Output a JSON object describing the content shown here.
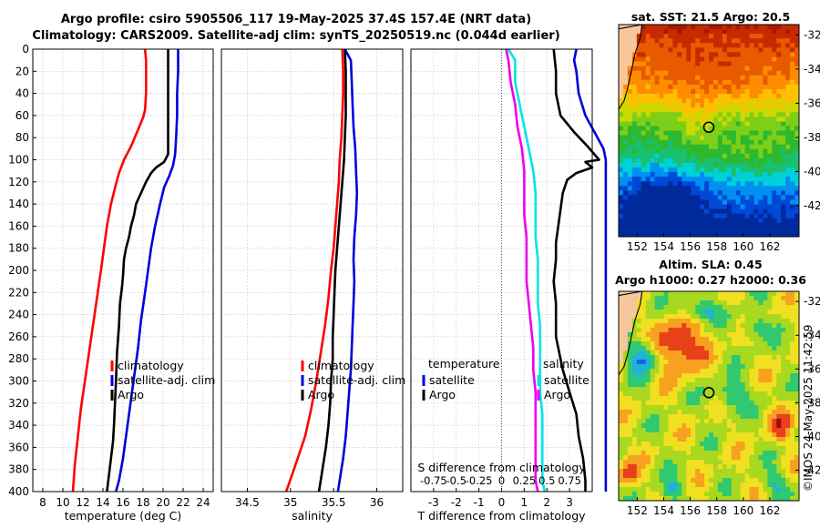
{
  "header": {
    "title_line1": "Argo profile: csiro 5905506_117 19-May-2025 37.4S 157.4E (NRT data)",
    "title_line2": "Climatology: CARS2009. Satellite-adj clim: synTS_20250519.nc (0.044d earlier)"
  },
  "copyright": "©IMOS 24-May-2025 11:42:59",
  "colors": {
    "climatology": "#ff0000",
    "satellite": "#0000dd",
    "argo": "#000000",
    "sal_satellite": "#00e5e5",
    "sal_climatology": "#ee00ee"
  },
  "chart_data": [
    {
      "type": "line",
      "id": "temperature",
      "xlabel": "temperature (deg C)",
      "ylabel": "",
      "xlim": [
        7,
        25
      ],
      "ylim": [
        400,
        0
      ],
      "xticks": [
        "8",
        "10",
        "12",
        "14",
        "16",
        "18",
        "20",
        "22",
        "24"
      ],
      "yticks": [
        "0",
        "20",
        "40",
        "60",
        "80",
        "100",
        "120",
        "140",
        "160",
        "180",
        "200",
        "220",
        "240",
        "260",
        "280",
        "300",
        "320",
        "340",
        "360",
        "380",
        "400"
      ],
      "legend": [
        "climatology",
        "satellite-adj. clim",
        "Argo"
      ],
      "series": [
        {
          "name": "climatology",
          "color": "#ff0000",
          "points": [
            [
              18.2,
              0
            ],
            [
              18.3,
              10
            ],
            [
              18.3,
              25
            ],
            [
              18.3,
              40
            ],
            [
              18.2,
              55
            ],
            [
              18.0,
              62
            ],
            [
              17.4,
              75
            ],
            [
              16.8,
              88
            ],
            [
              16.1,
              100
            ],
            [
              15.6,
              112
            ],
            [
              15.3,
              122
            ],
            [
              14.8,
              140
            ],
            [
              14.4,
              160
            ],
            [
              14.1,
              180
            ],
            [
              13.8,
              200
            ],
            [
              13.4,
              225
            ],
            [
              13.0,
              250
            ],
            [
              12.6,
              275
            ],
            [
              12.2,
              300
            ],
            [
              11.8,
              325
            ],
            [
              11.5,
              350
            ],
            [
              11.2,
              375
            ],
            [
              11.0,
              400
            ]
          ]
        },
        {
          "name": "satellite-adj. clim",
          "color": "#0000dd",
          "points": [
            [
              21.5,
              0
            ],
            [
              21.5,
              20
            ],
            [
              21.4,
              40
            ],
            [
              21.4,
              60
            ],
            [
              21.3,
              80
            ],
            [
              21.2,
              95
            ],
            [
              21.0,
              105
            ],
            [
              20.6,
              115
            ],
            [
              20.1,
              125
            ],
            [
              19.7,
              140
            ],
            [
              19.2,
              160
            ],
            [
              18.8,
              180
            ],
            [
              18.5,
              200
            ],
            [
              18.2,
              220
            ],
            [
              17.8,
              245
            ],
            [
              17.5,
              270
            ],
            [
              17.2,
              290
            ],
            [
              16.9,
              310
            ],
            [
              16.6,
              330
            ],
            [
              16.3,
              350
            ],
            [
              16.0,
              370
            ],
            [
              15.6,
              390
            ],
            [
              15.3,
              400
            ]
          ]
        },
        {
          "name": "Argo",
          "color": "#000000",
          "points": [
            [
              20.5,
              0
            ],
            [
              20.5,
              20
            ],
            [
              20.5,
              40
            ],
            [
              20.5,
              60
            ],
            [
              20.5,
              80
            ],
            [
              20.5,
              95
            ],
            [
              20.1,
              102
            ],
            [
              19.3,
              107
            ],
            [
              18.8,
              112
            ],
            [
              18.3,
              120
            ],
            [
              17.8,
              130
            ],
            [
              17.3,
              140
            ],
            [
              17.1,
              150
            ],
            [
              16.8,
              160
            ],
            [
              16.6,
              170
            ],
            [
              16.3,
              180
            ],
            [
              16.1,
              190
            ],
            [
              16.0,
              205
            ],
            [
              15.9,
              215
            ],
            [
              15.7,
              230
            ],
            [
              15.6,
              250
            ],
            [
              15.4,
              275
            ],
            [
              15.3,
              300
            ],
            [
              15.2,
              320
            ],
            [
              15.1,
              340
            ],
            [
              15.0,
              355
            ],
            [
              14.8,
              370
            ],
            [
              14.6,
              385
            ],
            [
              14.4,
              400
            ]
          ]
        }
      ]
    },
    {
      "type": "line",
      "id": "salinity",
      "xlabel": "salinity",
      "ylabel": "",
      "xlim": [
        34.2,
        36.3
      ],
      "ylim": [
        400,
        0
      ],
      "xticks": [
        "34.5",
        "35",
        "35.5",
        "36"
      ],
      "legend": [
        "climatology",
        "satellite-adj. clim",
        "Argo"
      ],
      "series": [
        {
          "name": "climatology",
          "color": "#ff0000",
          "points": [
            [
              35.6,
              0
            ],
            [
              35.61,
              20
            ],
            [
              35.61,
              40
            ],
            [
              35.6,
              60
            ],
            [
              35.59,
              80
            ],
            [
              35.57,
              100
            ],
            [
              35.56,
              120
            ],
            [
              35.54,
              140
            ],
            [
              35.52,
              160
            ],
            [
              35.5,
              180
            ],
            [
              35.47,
              200
            ],
            [
              35.44,
              225
            ],
            [
              35.4,
              250
            ],
            [
              35.35,
              275
            ],
            [
              35.3,
              300
            ],
            [
              35.24,
              325
            ],
            [
              35.17,
              350
            ],
            [
              35.04,
              380
            ],
            [
              34.95,
              400
            ]
          ]
        },
        {
          "name": "satellite-adj. clim",
          "color": "#0000dd",
          "points": [
            [
              35.63,
              0
            ],
            [
              35.7,
              10
            ],
            [
              35.71,
              30
            ],
            [
              35.72,
              50
            ],
            [
              35.73,
              70
            ],
            [
              35.75,
              90
            ],
            [
              35.76,
              110
            ],
            [
              35.77,
              130
            ],
            [
              35.76,
              150
            ],
            [
              35.74,
              170
            ],
            [
              35.73,
              190
            ],
            [
              35.74,
              210
            ],
            [
              35.73,
              230
            ],
            [
              35.72,
              250
            ],
            [
              35.71,
              270
            ],
            [
              35.7,
              290
            ],
            [
              35.68,
              310
            ],
            [
              35.66,
              330
            ],
            [
              35.64,
              350
            ],
            [
              35.61,
              370
            ],
            [
              35.57,
              390
            ],
            [
              35.55,
              400
            ]
          ]
        },
        {
          "name": "Argo",
          "color": "#000000",
          "points": [
            [
              35.63,
              0
            ],
            [
              35.64,
              20
            ],
            [
              35.64,
              40
            ],
            [
              35.64,
              60
            ],
            [
              35.63,
              80
            ],
            [
              35.62,
              100
            ],
            [
              35.6,
              120
            ],
            [
              35.58,
              140
            ],
            [
              35.56,
              160
            ],
            [
              35.54,
              180
            ],
            [
              35.52,
              200
            ],
            [
              35.51,
              220
            ],
            [
              35.5,
              240
            ],
            [
              35.49,
              260
            ],
            [
              35.49,
              280
            ],
            [
              35.47,
              300
            ],
            [
              35.46,
              320
            ],
            [
              35.44,
              340
            ],
            [
              35.41,
              360
            ],
            [
              35.37,
              380
            ],
            [
              35.33,
              400
            ]
          ]
        }
      ]
    },
    {
      "type": "line",
      "id": "difference",
      "xlabel": "T difference from climatology",
      "xlabel_top": "S difference from climatology",
      "xlim": [
        -4,
        4
      ],
      "ylim": [
        400,
        0
      ],
      "xticks": [
        "-3",
        "-2",
        "-1",
        "0",
        "1",
        "2",
        "3"
      ],
      "xticks_top": [
        "-0.75",
        "-0.5",
        "-0.25",
        "0",
        "0.25",
        "0.5",
        "0.75"
      ],
      "legend_temperature": {
        "title": "temperature",
        "entries": [
          "satellite",
          "Argo"
        ]
      },
      "legend_salinity": {
        "title": "salinity",
        "entries": [
          "satellite",
          "Argo"
        ]
      },
      "series": [
        {
          "name": "T satellite",
          "color": "#0000dd",
          "points": [
            [
              3.3,
              0
            ],
            [
              3.2,
              10
            ],
            [
              3.3,
              20
            ],
            [
              3.4,
              40
            ],
            [
              3.7,
              60
            ],
            [
              4.1,
              75
            ],
            [
              4.5,
              90
            ],
            [
              4.6,
              100
            ],
            [
              4.6,
              120
            ],
            [
              4.6,
              140
            ],
            [
              4.6,
              160
            ],
            [
              4.6,
              200
            ],
            [
              4.6,
              260
            ],
            [
              4.6,
              300
            ],
            [
              4.6,
              360
            ],
            [
              4.6,
              400
            ]
          ]
        },
        {
          "name": "T Argo",
          "color": "#000000",
          "points": [
            [
              2.3,
              0
            ],
            [
              2.4,
              20
            ],
            [
              2.4,
              40
            ],
            [
              2.6,
              60
            ],
            [
              3.2,
              75
            ],
            [
              3.8,
              88
            ],
            [
              4.3,
              100
            ],
            [
              3.7,
              102
            ],
            [
              4.0,
              107
            ],
            [
              3.3,
              112
            ],
            [
              2.9,
              118
            ],
            [
              2.7,
              130
            ],
            [
              2.6,
              145
            ],
            [
              2.5,
              160
            ],
            [
              2.4,
              175
            ],
            [
              2.4,
              190
            ],
            [
              2.3,
              210
            ],
            [
              2.4,
              230
            ],
            [
              2.4,
              260
            ],
            [
              2.7,
              290
            ],
            [
              3.0,
              310
            ],
            [
              3.3,
              330
            ],
            [
              3.4,
              350
            ],
            [
              3.6,
              370
            ],
            [
              3.7,
              390
            ],
            [
              3.7,
              400
            ]
          ]
        },
        {
          "name": "S satellite",
          "color": "#00e5e5",
          "points": [
            [
              0.3,
              0
            ],
            [
              0.6,
              10
            ],
            [
              0.6,
              30
            ],
            [
              0.8,
              50
            ],
            [
              1.0,
              70
            ],
            [
              1.2,
              90
            ],
            [
              1.4,
              110
            ],
            [
              1.5,
              130
            ],
            [
              1.5,
              150
            ],
            [
              1.5,
              170
            ],
            [
              1.6,
              190
            ],
            [
              1.6,
              210
            ],
            [
              1.6,
              230
            ],
            [
              1.7,
              250
            ],
            [
              1.7,
              270
            ],
            [
              1.7,
              290
            ],
            [
              1.7,
              310
            ],
            [
              1.8,
              330
            ],
            [
              1.8,
              350
            ],
            [
              1.8,
              370
            ],
            [
              1.8,
              390
            ],
            [
              1.9,
              400
            ]
          ]
        },
        {
          "name": "S Argo",
          "color": "#ee00ee",
          "points": [
            [
              0.2,
              0
            ],
            [
              0.3,
              10
            ],
            [
              0.4,
              30
            ],
            [
              0.6,
              50
            ],
            [
              0.7,
              70
            ],
            [
              0.9,
              90
            ],
            [
              1.0,
              110
            ],
            [
              1.0,
              130
            ],
            [
              1.0,
              150
            ],
            [
              1.1,
              170
            ],
            [
              1.1,
              190
            ],
            [
              1.1,
              210
            ],
            [
              1.2,
              230
            ],
            [
              1.3,
              250
            ],
            [
              1.4,
              270
            ],
            [
              1.4,
              290
            ],
            [
              1.5,
              310
            ],
            [
              1.5,
              330
            ],
            [
              1.5,
              350
            ],
            [
              1.5,
              370
            ],
            [
              1.5,
              390
            ],
            [
              1.6,
              400
            ]
          ]
        }
      ]
    },
    {
      "type": "heatmap",
      "id": "sst_map",
      "title": "sat. SST: 21.5 Argo: 20.5",
      "xlim": [
        150.6,
        164.2
      ],
      "ylim": [
        -43.8,
        -31.4
      ],
      "xticks": [
        "152",
        "154",
        "156",
        "158",
        "160",
        "162"
      ],
      "yticks": [
        "-32",
        "-34",
        "-36",
        "-38",
        "-40",
        "-42"
      ],
      "marker": {
        "lon": 157.4,
        "lat": -37.4
      }
    },
    {
      "type": "heatmap",
      "id": "sla_map",
      "title_line1": "Altim. SLA: 0.45",
      "title_line2": "Argo h1000: 0.27 h2000: 0.36",
      "xlim": [
        150.6,
        164.2
      ],
      "ylim": [
        -43.8,
        -31.4
      ],
      "xticks": [
        "152",
        "154",
        "156",
        "158",
        "160",
        "162"
      ],
      "yticks": [
        "-32",
        "-34",
        "-36",
        "-38",
        "-40",
        "-42"
      ],
      "marker": {
        "lon": 157.4,
        "lat": -37.4
      }
    }
  ]
}
